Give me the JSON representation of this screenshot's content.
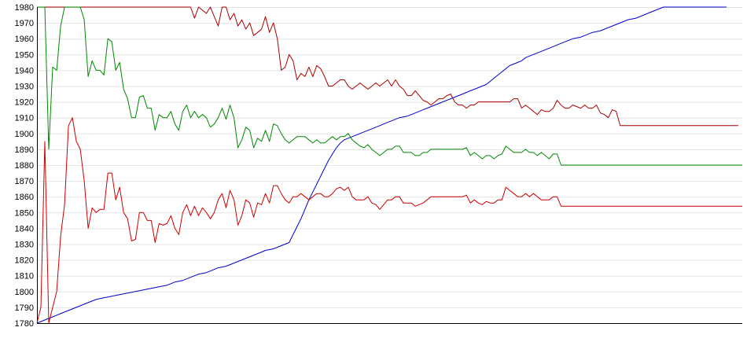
{
  "chart_data": {
    "type": "line",
    "title": "",
    "xlabel": "",
    "ylabel": "",
    "ylim": [
      1780,
      1980
    ],
    "xlim": [
      0,
      179
    ],
    "yticks": [
      1780,
      1790,
      1800,
      1810,
      1820,
      1830,
      1840,
      1850,
      1860,
      1870,
      1880,
      1890,
      1900,
      1910,
      1920,
      1930,
      1940,
      1950,
      1960,
      1970,
      1980
    ],
    "grid": true,
    "legend": "none",
    "series": [
      {
        "color": "#0000cc",
        "values": [
          1780,
          1781,
          1782,
          1783,
          1784,
          1785,
          1786,
          1787,
          1788,
          1789,
          1790,
          1791,
          1792,
          1793,
          1794,
          1795,
          1795.5,
          1796,
          1796.5,
          1797,
          1797.5,
          1798,
          1798.5,
          1799,
          1799.5,
          1800,
          1800.5,
          1801,
          1801.5,
          1802,
          1802.5,
          1803,
          1803.5,
          1804,
          1805,
          1806,
          1806.5,
          1807,
          1808,
          1809,
          1810,
          1811,
          1811.5,
          1812,
          1813,
          1814,
          1815,
          1815.5,
          1816,
          1817,
          1818,
          1819,
          1820,
          1821,
          1822,
          1823,
          1824,
          1825,
          1826,
          1826.5,
          1827,
          1828,
          1829,
          1830,
          1831,
          1836,
          1841,
          1846,
          1852,
          1858,
          1863,
          1868,
          1873,
          1878,
          1883,
          1887,
          1891,
          1894,
          1896,
          1897,
          1898,
          1899,
          1900,
          1901,
          1902,
          1903,
          1904,
          1905,
          1906,
          1907,
          1908,
          1909,
          1910,
          1910.5,
          1911,
          1912,
          1913,
          1914,
          1915,
          1916,
          1917,
          1918,
          1919,
          1920,
          1921,
          1922,
          1923,
          1924,
          1925,
          1926,
          1927,
          1928,
          1929,
          1930,
          1931,
          1933,
          1935,
          1937,
          1939,
          1941,
          1943,
          1944,
          1945,
          1946,
          1948,
          1949,
          1950,
          1951,
          1952,
          1953,
          1954,
          1955,
          1956,
          1957,
          1958,
          1959,
          1960,
          1960.5,
          1961,
          1962,
          1963,
          1964,
          1964.5,
          1965,
          1966,
          1967,
          1968,
          1969,
          1970,
          1971,
          1972,
          1972.5,
          1973,
          1974,
          1975,
          1976,
          1977,
          1978,
          1979,
          1980,
          1980,
          1980,
          1980,
          1980,
          1980,
          1980,
          1980,
          1980,
          1980,
          1980,
          1980,
          1980,
          1980,
          1980,
          1980,
          1980
        ]
      },
      {
        "color": "#aa0000",
        "values": [
          1980,
          1980,
          1980,
          1980,
          1980,
          1980,
          1980,
          1980,
          1980,
          1980,
          1980,
          1980,
          1980,
          1980,
          1980,
          1980,
          1980,
          1980,
          1980,
          1980,
          1980,
          1980,
          1980,
          1980,
          1980,
          1980,
          1980,
          1980,
          1980,
          1980,
          1980,
          1980,
          1980,
          1980,
          1980,
          1980,
          1980,
          1980,
          1980,
          1980,
          1973,
          1980,
          1978,
          1976,
          1980,
          1974,
          1968,
          1980,
          1980,
          1972,
          1976,
          1968,
          1972,
          1966,
          1970,
          1962,
          1964,
          1966,
          1974,
          1964,
          1970,
          1960,
          1940,
          1942,
          1950,
          1946,
          1934,
          1938,
          1936,
          1942,
          1936,
          1943,
          1941,
          1936,
          1930,
          1930,
          1932,
          1934,
          1934,
          1930,
          1928,
          1930,
          1932,
          1930,
          1928,
          1930,
          1932,
          1930,
          1932,
          1934,
          1930,
          1934,
          1930,
          1928,
          1924,
          1924,
          1927,
          1924,
          1921,
          1920,
          1918,
          1920,
          1922,
          1922,
          1924,
          1925,
          1920,
          1918,
          1918,
          1916,
          1918,
          1918,
          1920,
          1920,
          1920,
          1920,
          1920,
          1920,
          1920,
          1920,
          1920,
          1922,
          1922,
          1916,
          1918,
          1916,
          1914,
          1912,
          1915,
          1914,
          1914,
          1916,
          1921,
          1918,
          1916,
          1916,
          1918,
          1917,
          1916,
          1918,
          1916,
          1916,
          1918,
          1913,
          1912,
          1910,
          1915,
          1914,
          1905,
          1905,
          1905,
          1905,
          1905,
          1905,
          1905,
          1905,
          1905,
          1905,
          1905,
          1905,
          1905,
          1905,
          1905,
          1905,
          1905,
          1905,
          1905,
          1905,
          1905,
          1905,
          1905,
          1905,
          1905,
          1905,
          1905,
          1905,
          1905,
          1905,
          1905
        ]
      },
      {
        "color": "#008800",
        "values": [
          1980,
          1980,
          1980,
          1890,
          1942,
          1940,
          1968,
          1980,
          1980,
          1980,
          1980,
          1980,
          1972,
          1936,
          1946,
          1940,
          1940,
          1937,
          1960,
          1958,
          1940,
          1945,
          1928,
          1922,
          1910,
          1910,
          1923,
          1924,
          1916,
          1916,
          1902,
          1912,
          1910,
          1910,
          1914,
          1906,
          1902,
          1914,
          1918,
          1910,
          1914,
          1910,
          1912,
          1910,
          1904,
          1906,
          1910,
          1916,
          1909,
          1918,
          1910,
          1891,
          1896,
          1904,
          1902,
          1891,
          1897,
          1895,
          1902,
          1895,
          1906,
          1905,
          1900,
          1896,
          1894,
          1896,
          1898,
          1898,
          1898,
          1896,
          1894,
          1896,
          1894,
          1894,
          1896,
          1898,
          1896,
          1898,
          1898,
          1900,
          1896,
          1894,
          1892,
          1891,
          1893,
          1890,
          1888,
          1886,
          1888,
          1890,
          1890,
          1892,
          1892,
          1888,
          1888,
          1888,
          1886,
          1886,
          1888,
          1888,
          1890,
          1890,
          1890,
          1890,
          1890,
          1890,
          1890,
          1890,
          1890,
          1891,
          1886,
          1888,
          1886,
          1884,
          1886,
          1886,
          1884,
          1886,
          1887,
          1892,
          1890,
          1888,
          1888,
          1888,
          1890,
          1888,
          1888,
          1886,
          1888,
          1886,
          1884,
          1887,
          1887,
          1880,
          1880,
          1880,
          1880,
          1880,
          1880,
          1880,
          1880,
          1880,
          1880,
          1880,
          1880,
          1880,
          1880,
          1880,
          1880,
          1880,
          1880,
          1880,
          1880,
          1880,
          1880,
          1880,
          1880,
          1880,
          1880,
          1880,
          1880,
          1880,
          1880,
          1880,
          1880,
          1880,
          1880,
          1880,
          1880,
          1880,
          1880,
          1880,
          1880,
          1880,
          1880,
          1880,
          1880,
          1880,
          1880,
          1880
        ]
      },
      {
        "color": "#cc0000",
        "values": [
          1780,
          1790,
          1895,
          1780,
          1790,
          1800,
          1835,
          1855,
          1905,
          1910,
          1895,
          1890,
          1870,
          1840,
          1853,
          1850,
          1852,
          1852,
          1875,
          1875,
          1858,
          1866,
          1850,
          1846,
          1832,
          1833,
          1850,
          1850,
          1845,
          1845,
          1831,
          1843,
          1842,
          1843,
          1848,
          1840,
          1836,
          1850,
          1855,
          1848,
          1854,
          1848,
          1853,
          1850,
          1846,
          1850,
          1858,
          1862,
          1853,
          1864,
          1858,
          1842,
          1848,
          1858,
          1856,
          1847,
          1856,
          1855,
          1862,
          1856,
          1867,
          1867,
          1862,
          1858,
          1856,
          1860,
          1860,
          1862,
          1860,
          1858,
          1860,
          1862,
          1862,
          1860,
          1860,
          1862,
          1865,
          1866,
          1864,
          1866,
          1860,
          1858,
          1858,
          1858,
          1860,
          1856,
          1855,
          1852,
          1855,
          1858,
          1858,
          1860,
          1860,
          1856,
          1856,
          1856,
          1854,
          1855,
          1856,
          1858,
          1860,
          1860,
          1860,
          1860,
          1860,
          1860,
          1860,
          1860,
          1860,
          1861,
          1856,
          1858,
          1856,
          1855,
          1857,
          1856,
          1856,
          1858,
          1858,
          1866,
          1864,
          1862,
          1860,
          1860,
          1862,
          1860,
          1862,
          1860,
          1858,
          1858,
          1858,
          1860,
          1860,
          1854,
          1854,
          1854,
          1854,
          1854,
          1854,
          1854,
          1854,
          1854,
          1854,
          1854,
          1854,
          1854,
          1854,
          1854,
          1854,
          1854,
          1854,
          1854,
          1854,
          1854,
          1854,
          1854,
          1854,
          1854,
          1854,
          1854,
          1854,
          1854,
          1854,
          1854,
          1854,
          1854,
          1854,
          1854,
          1854,
          1854,
          1854,
          1854,
          1854,
          1854,
          1854,
          1854,
          1854,
          1854,
          1854,
          1854
        ]
      }
    ]
  }
}
